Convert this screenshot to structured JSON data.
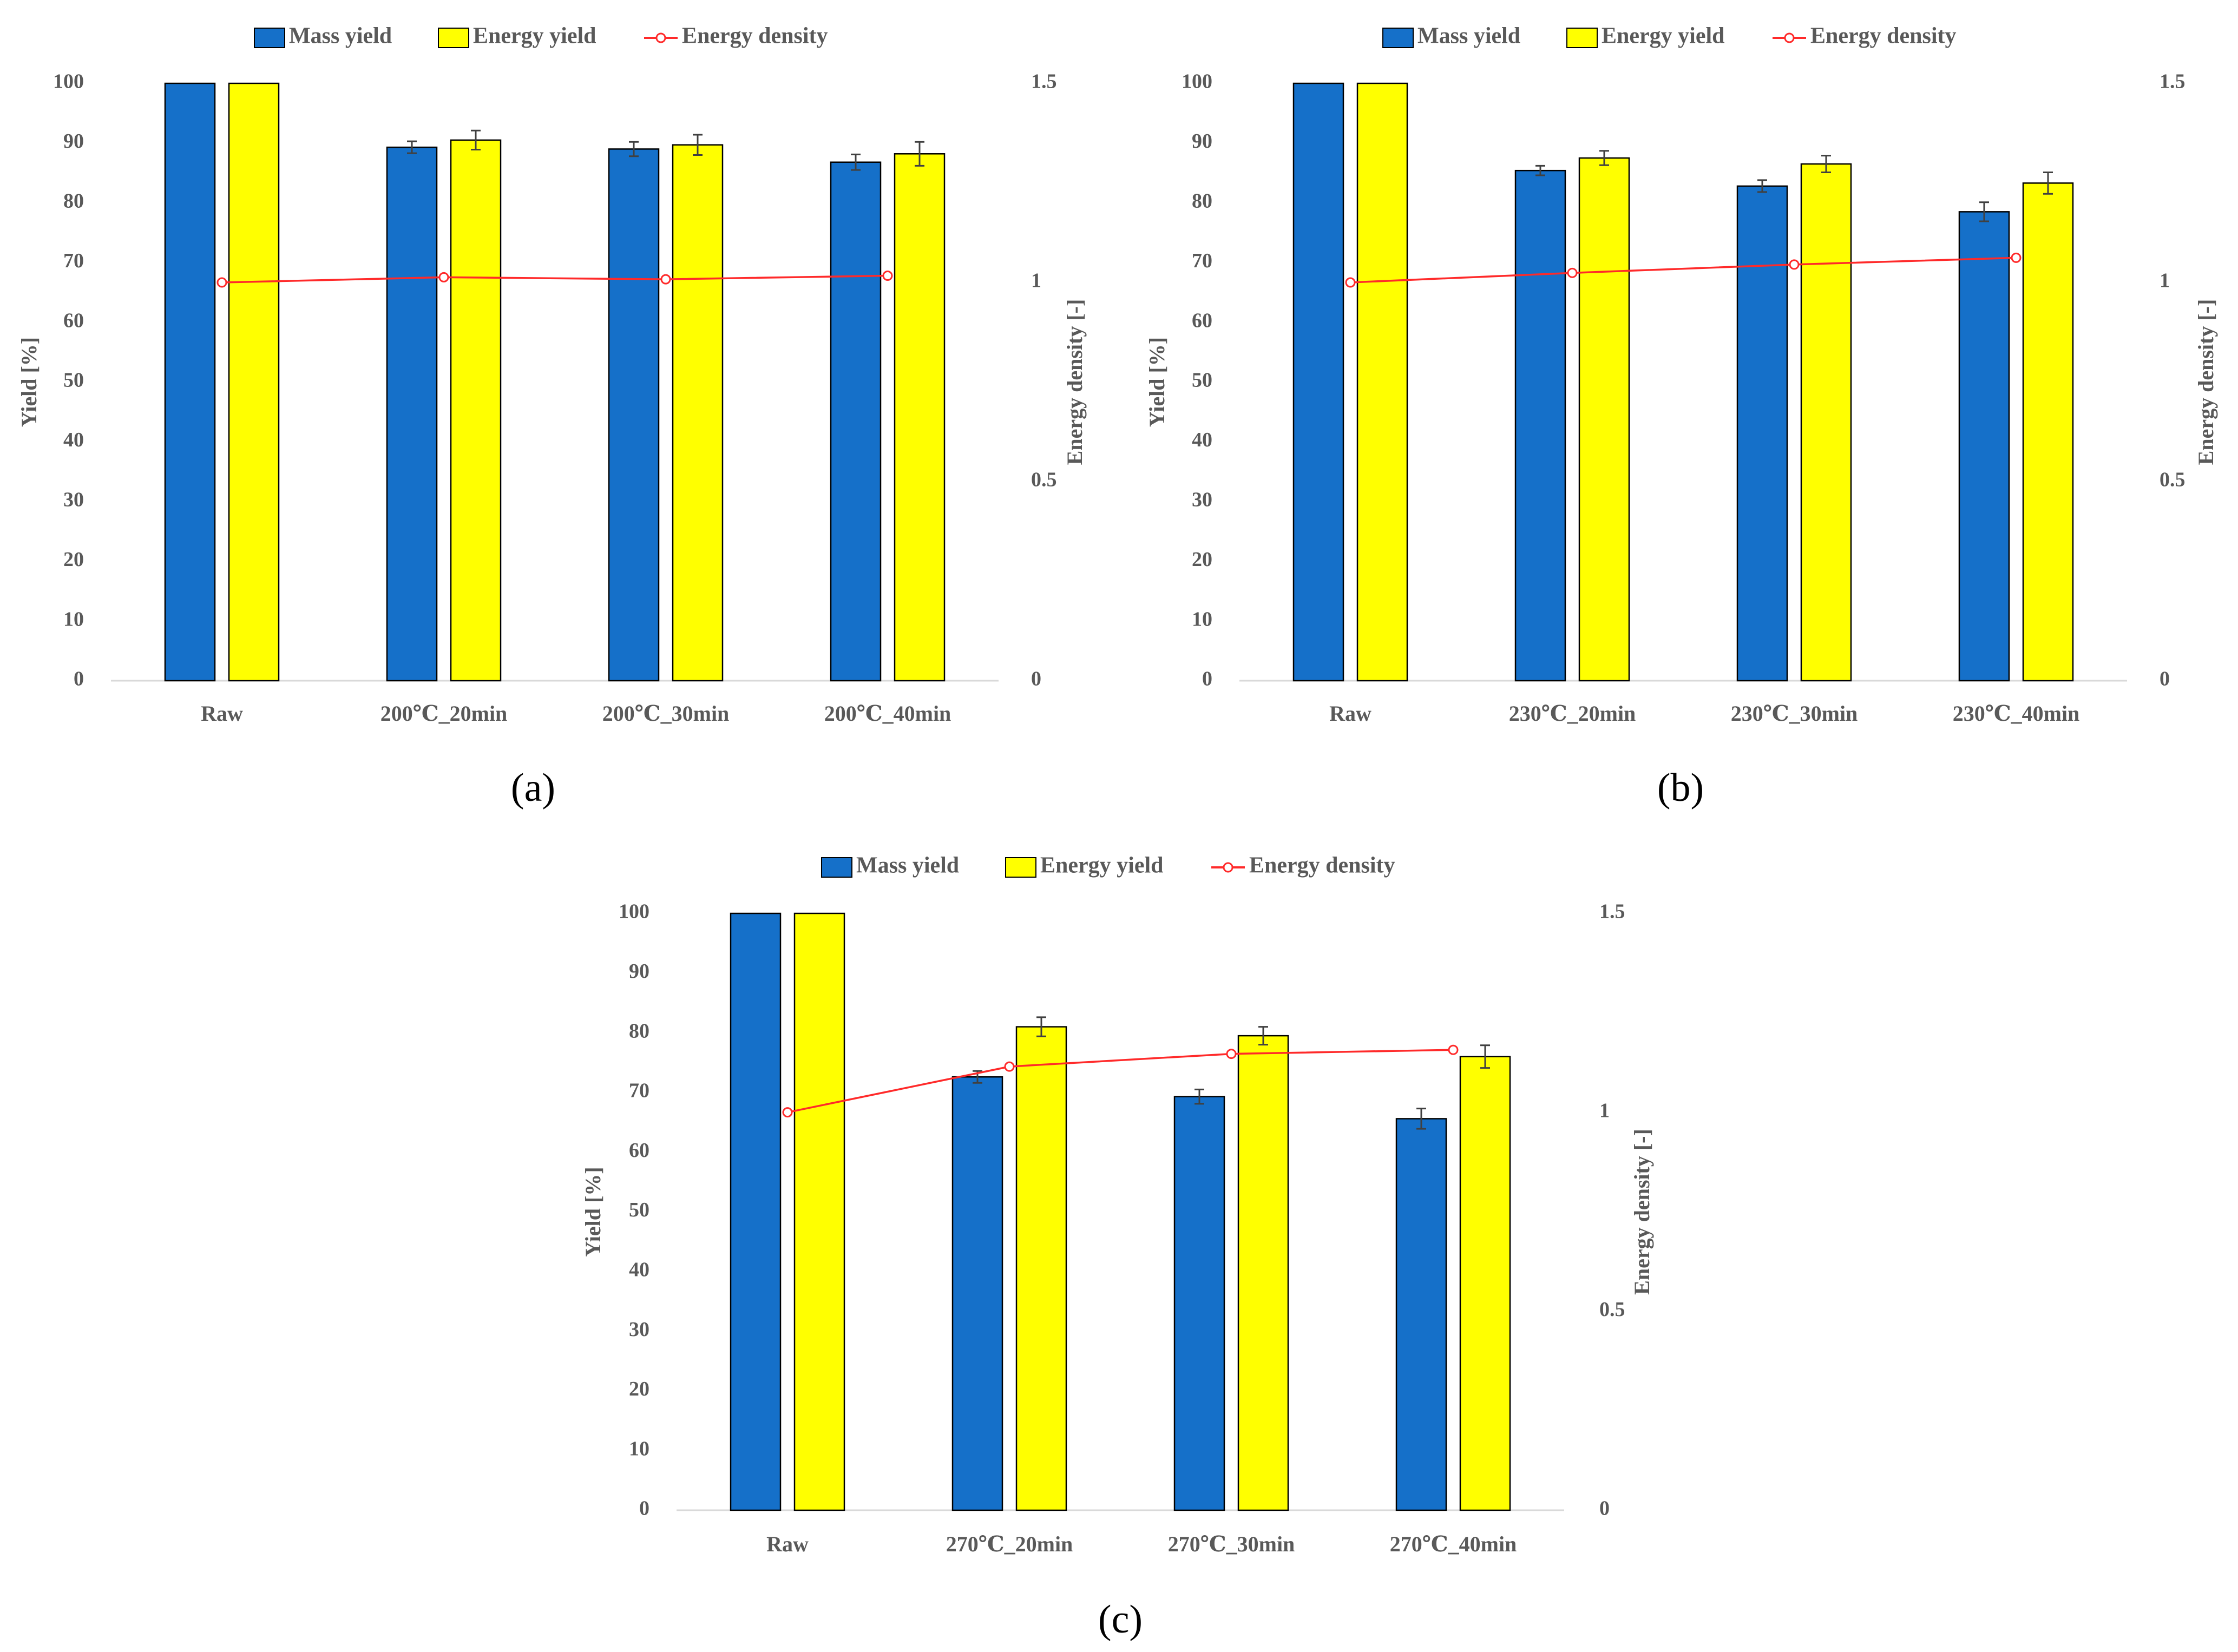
{
  "figure": {
    "panel_labels": [
      "(a)",
      "(b)",
      "(c)"
    ]
  },
  "legend": {
    "mass_yield": "Mass yield",
    "energy_yield": "Energy yield",
    "energy_density": "Energy density"
  },
  "colors": {
    "mass_yield": "#1570c9",
    "energy_yield": "#ffff00",
    "energy_density": "#ff2a2a",
    "axis_text": "#595959",
    "axis_line": "#d9d9d9",
    "bar_outline": "#000000",
    "error_bar": "#404040"
  },
  "chart_data": [
    {
      "type": "bar",
      "panel": "(a)",
      "categories": [
        "Raw",
        "200℃_20min",
        "200℃_30min",
        "200℃_40min"
      ],
      "series": [
        {
          "name": "Mass yield",
          "axis": "left",
          "values": [
            100,
            89.3,
            89.0,
            86.8
          ],
          "errors": [
            0,
            1.0,
            1.2,
            1.3
          ]
        },
        {
          "name": "Energy yield",
          "axis": "left",
          "values": [
            100,
            90.5,
            89.7,
            88.2
          ],
          "errors": [
            0,
            1.6,
            1.7,
            2.0
          ]
        },
        {
          "name": "Energy density",
          "axis": "right",
          "type": "line",
          "values": [
            1.0,
            1.013,
            1.008,
            1.017
          ]
        }
      ],
      "ylabel": "Yield [%]",
      "y2label": "Energy density [-]",
      "ylim": [
        0,
        100
      ],
      "y2lim": [
        0,
        1.5
      ],
      "yticks": [
        "0",
        "10",
        "20",
        "30",
        "40",
        "50",
        "60",
        "70",
        "80",
        "90",
        "100"
      ],
      "y2ticks": [
        "0",
        "0.5",
        "1",
        "1.5"
      ],
      "legend_position": "top"
    },
    {
      "type": "bar",
      "panel": "(b)",
      "categories": [
        "Raw",
        "230℃_20min",
        "230℃_30min",
        "230℃_40min"
      ],
      "series": [
        {
          "name": "Mass yield",
          "axis": "left",
          "values": [
            100,
            85.4,
            82.8,
            78.5
          ],
          "errors": [
            0,
            0.8,
            1.0,
            1.6
          ]
        },
        {
          "name": "Energy yield",
          "axis": "left",
          "values": [
            100,
            87.5,
            86.5,
            83.3
          ],
          "errors": [
            0,
            1.2,
            1.4,
            1.8
          ]
        },
        {
          "name": "Energy density",
          "axis": "right",
          "type": "line",
          "values": [
            1.0,
            1.024,
            1.045,
            1.062
          ]
        }
      ],
      "ylabel": "Yield [%]",
      "y2label": "Energy density [-]",
      "ylim": [
        0,
        100
      ],
      "y2lim": [
        0,
        1.5
      ],
      "yticks": [
        "0",
        "10",
        "20",
        "30",
        "40",
        "50",
        "60",
        "70",
        "80",
        "90",
        "100"
      ],
      "y2ticks": [
        "0",
        "0.5",
        "1",
        "1.5"
      ],
      "legend_position": "top"
    },
    {
      "type": "bar",
      "panel": "(c)",
      "categories": [
        "Raw",
        "270℃_20min",
        "270℃_30min",
        "270℃_40min"
      ],
      "series": [
        {
          "name": "Mass yield",
          "axis": "left",
          "values": [
            100,
            72.6,
            69.3,
            65.6
          ],
          "errors": [
            0,
            1.0,
            1.2,
            1.7
          ]
        },
        {
          "name": "Energy yield",
          "axis": "left",
          "values": [
            100,
            81.0,
            79.5,
            76.0
          ],
          "errors": [
            0,
            1.6,
            1.5,
            1.9
          ]
        },
        {
          "name": "Energy density",
          "axis": "right",
          "type": "line",
          "values": [
            1.0,
            1.115,
            1.147,
            1.157
          ]
        }
      ],
      "ylabel": "Yield [%]",
      "y2label": "Energy density [-]",
      "ylim": [
        0,
        100
      ],
      "y2lim": [
        0,
        1.5
      ],
      "yticks": [
        "0",
        "10",
        "20",
        "30",
        "40",
        "50",
        "60",
        "70",
        "80",
        "90",
        "100"
      ],
      "y2ticks": [
        "0",
        "0.5",
        "1",
        "1.5"
      ],
      "legend_position": "top"
    }
  ]
}
